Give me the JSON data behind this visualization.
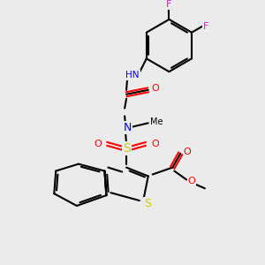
{
  "background_color": "#ebebeb",
  "bond_color": "#000000",
  "bond_width": 1.5,
  "atom_colors": {
    "C": "#000000",
    "H": "#6fa0a0",
    "N": "#0000ff",
    "O": "#ff0000",
    "S": "#cccc00",
    "F": "#ff00ff"
  },
  "font_size": 7.5
}
